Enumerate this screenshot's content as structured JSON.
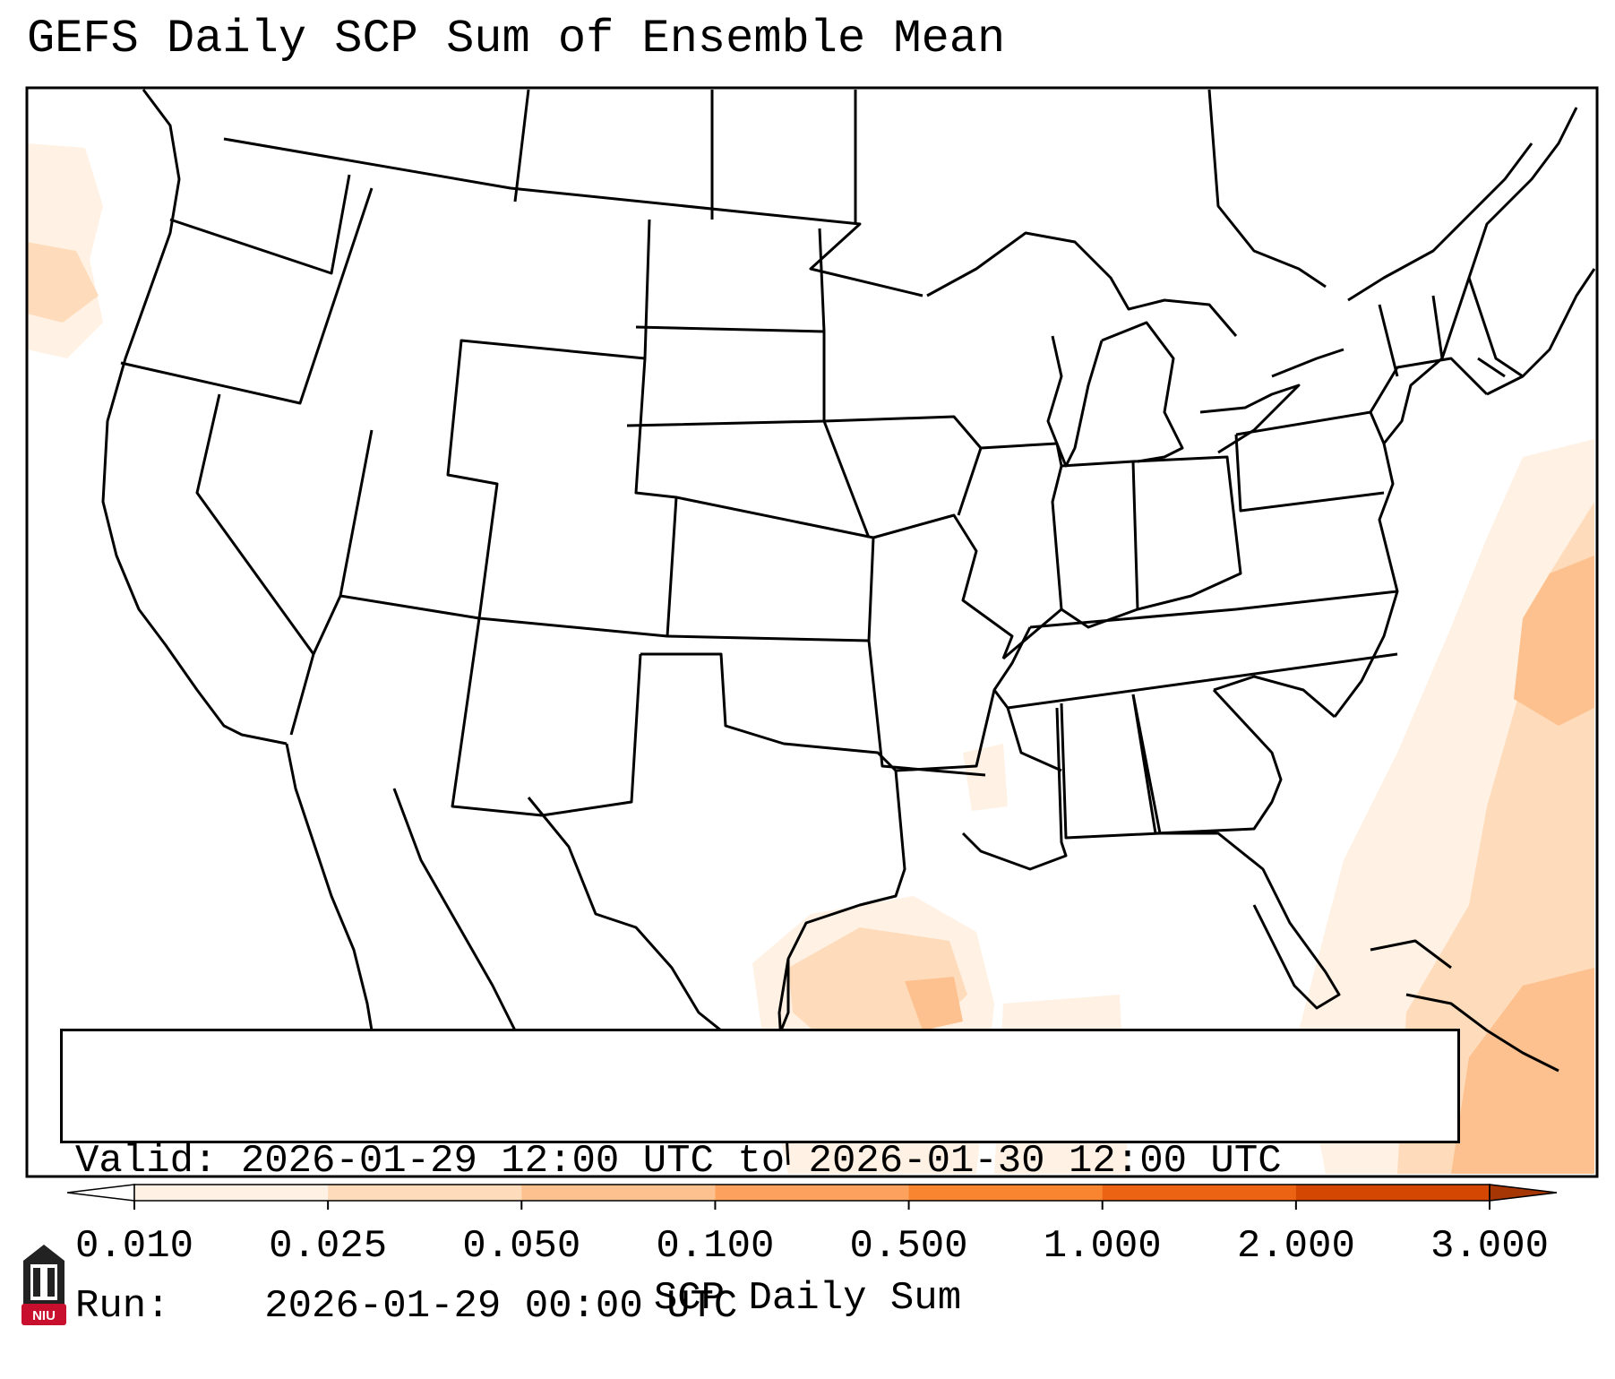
{
  "title": "GEFS Daily SCP Sum of Ensemble Mean",
  "info": {
    "valid_label": "Valid:",
    "valid_value": "2026-01-29 12:00 UTC to 2026-01-30 12:00 UTC",
    "run_label": "Run:",
    "run_value": "2026-01-29 00:00 UTC"
  },
  "colorbar": {
    "label": "SCP Daily Sum",
    "ticks": [
      "0.010",
      "0.025",
      "0.050",
      "0.100",
      "0.500",
      "1.000",
      "2.000",
      "3.000"
    ],
    "colors": [
      "#fff1e4",
      "#fedcbb",
      "#fdc18f",
      "#fda25e",
      "#f98531",
      "#ec6413",
      "#d44702"
    ],
    "extend": "both",
    "under_color": "#ffffff",
    "over_color": "#a63603"
  },
  "logo": {
    "text": "NIU",
    "color": "#c8102e"
  }
}
